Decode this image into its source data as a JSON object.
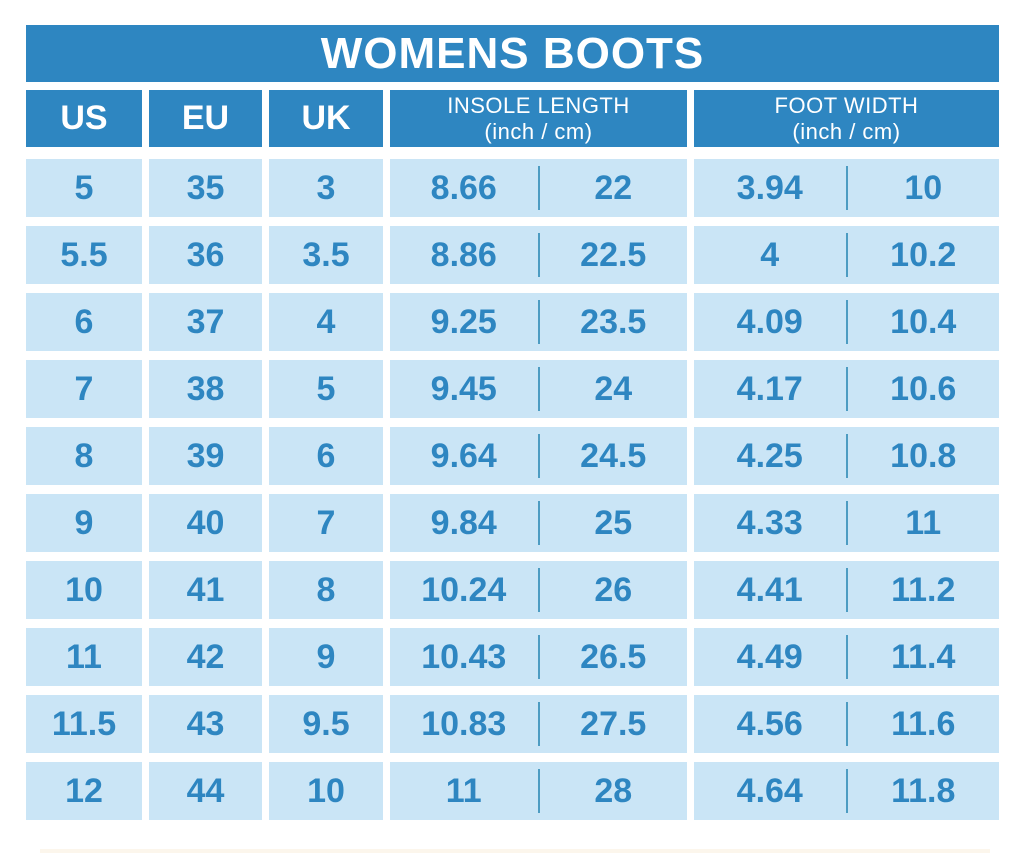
{
  "title": "WOMENS BOOTS",
  "colors": {
    "blue": "#2E86C1",
    "light_blue": "#CAE5F6",
    "divider": "#4D9CC2",
    "text_on_blue": "#FFFFFF"
  },
  "table": {
    "headers": {
      "us": "US",
      "eu": "EU",
      "uk": "UK",
      "insole": {
        "line1": "INSOLE LENGTH",
        "line2": "(inch / cm)"
      },
      "foot": {
        "line1": "FOOT WIDTH",
        "line2": "(inch / cm)"
      }
    },
    "rows": [
      {
        "us": "5",
        "eu": "35",
        "uk": "3",
        "insole_in": "8.66",
        "insole_cm": "22",
        "foot_in": "3.94",
        "foot_cm": "10"
      },
      {
        "us": "5.5",
        "eu": "36",
        "uk": "3.5",
        "insole_in": "8.86",
        "insole_cm": "22.5",
        "foot_in": "4",
        "foot_cm": "10.2"
      },
      {
        "us": "6",
        "eu": "37",
        "uk": "4",
        "insole_in": "9.25",
        "insole_cm": "23.5",
        "foot_in": "4.09",
        "foot_cm": "10.4"
      },
      {
        "us": "7",
        "eu": "38",
        "uk": "5",
        "insole_in": "9.45",
        "insole_cm": "24",
        "foot_in": "4.17",
        "foot_cm": "10.6"
      },
      {
        "us": "8",
        "eu": "39",
        "uk": "6",
        "insole_in": "9.64",
        "insole_cm": "24.5",
        "foot_in": "4.25",
        "foot_cm": "10.8"
      },
      {
        "us": "9",
        "eu": "40",
        "uk": "7",
        "insole_in": "9.84",
        "insole_cm": "25",
        "foot_in": "4.33",
        "foot_cm": "11"
      },
      {
        "us": "10",
        "eu": "41",
        "uk": "8",
        "insole_in": "10.24",
        "insole_cm": "26",
        "foot_in": "4.41",
        "foot_cm": "11.2"
      },
      {
        "us": "11",
        "eu": "42",
        "uk": "9",
        "insole_in": "10.43",
        "insole_cm": "26.5",
        "foot_in": "4.49",
        "foot_cm": "11.4"
      },
      {
        "us": "11.5",
        "eu": "43",
        "uk": "9.5",
        "insole_in": "10.83",
        "insole_cm": "27.5",
        "foot_in": "4.56",
        "foot_cm": "11.6"
      },
      {
        "us": "12",
        "eu": "44",
        "uk": "10",
        "insole_in": "11",
        "insole_cm": "28",
        "foot_in": "4.64",
        "foot_cm": "11.8"
      }
    ]
  },
  "chart_data": {
    "type": "table",
    "title": "WOMENS BOOTS",
    "columns": [
      "US",
      "EU",
      "UK",
      "INSOLE LENGTH (inch)",
      "INSOLE LENGTH (cm)",
      "FOOT WIDTH (inch)",
      "FOOT WIDTH (cm)"
    ],
    "rows": [
      [
        "5",
        "35",
        "3",
        "8.66",
        "22",
        "3.94",
        "10"
      ],
      [
        "5.5",
        "36",
        "3.5",
        "8.86",
        "22.5",
        "4",
        "10.2"
      ],
      [
        "6",
        "37",
        "4",
        "9.25",
        "23.5",
        "4.09",
        "10.4"
      ],
      [
        "7",
        "38",
        "5",
        "9.45",
        "24",
        "4.17",
        "10.6"
      ],
      [
        "8",
        "39",
        "6",
        "9.64",
        "24.5",
        "4.25",
        "10.8"
      ],
      [
        "9",
        "40",
        "7",
        "9.84",
        "25",
        "4.33",
        "11"
      ],
      [
        "10",
        "41",
        "8",
        "10.24",
        "26",
        "4.41",
        "11.2"
      ],
      [
        "11",
        "42",
        "9",
        "10.43",
        "26.5",
        "4.49",
        "11.4"
      ],
      [
        "11.5",
        "43",
        "9.5",
        "10.83",
        "27.5",
        "4.56",
        "11.6"
      ],
      [
        "12",
        "44",
        "10",
        "11",
        "28",
        "4.64",
        "11.8"
      ]
    ]
  }
}
